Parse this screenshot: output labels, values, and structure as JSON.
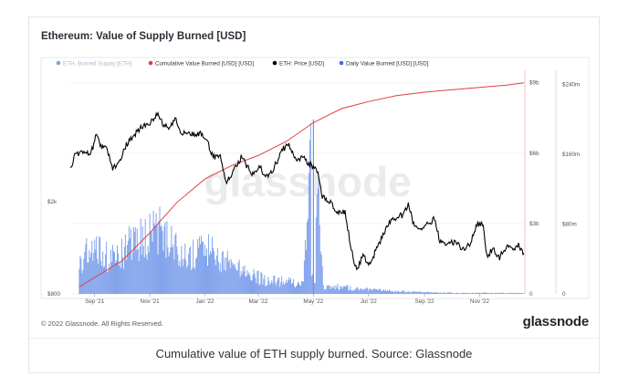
{
  "header": {
    "title": "Ethereum: Value of Supply Burned [USD]"
  },
  "footer": {
    "copyright": "© 2022 Glassnode. All Rights Reserved.",
    "logo_text": "glassnode"
  },
  "caption": "Cumulative value of ETH supply burned. Source: Glassnode",
  "watermark": "glassnode",
  "colors": {
    "eth_supply": "#7ea2de",
    "cumulative": "#e0403f",
    "price": "#000000",
    "daily": "#3c6ee8"
  },
  "chart_data": {
    "type": "line",
    "title": "Ethereum: Value of Supply Burned [USD]",
    "x_tick_labels": [
      "Sep '21",
      "Nov '21",
      "Jan '22",
      "Mar '22",
      "May '22",
      "Jul '22",
      "Sep '22",
      "Nov '22"
    ],
    "x_range": [
      "2021-08-05",
      "2022-12-20"
    ],
    "y_axis_price": {
      "ticks": [
        "$800",
        "$2k"
      ],
      "scale": "log",
      "range": [
        800,
        7000
      ]
    },
    "y_axis_cumulative": {
      "ticks": [
        "0",
        "$3b",
        "$6b",
        "$9b"
      ],
      "range": [
        0,
        9300000000
      ]
    },
    "y_axis_daily": {
      "ticks": [
        "0",
        "$80m",
        "$160m",
        "$240m"
      ],
      "range": [
        0,
        250000000
      ]
    },
    "legend": [
      "ETH: Burned Supply [ETH]",
      "Cumulative Value Burned [USD] [USD]",
      "ETH: Price [USD]",
      "Daily Value Burned [USD] [USD]"
    ],
    "series": [
      {
        "name": "ETH: Price [USD]",
        "axis": "price",
        "points": [
          [
            "2021-08-05",
            2800
          ],
          [
            "2021-08-10",
            3150
          ],
          [
            "2021-08-15",
            3250
          ],
          [
            "2021-08-22",
            3300
          ],
          [
            "2021-08-28",
            3250
          ],
          [
            "2021-09-03",
            3900
          ],
          [
            "2021-09-07",
            3450
          ],
          [
            "2021-09-14",
            3400
          ],
          [
            "2021-09-21",
            2800
          ],
          [
            "2021-09-28",
            2950
          ],
          [
            "2021-10-06",
            3550
          ],
          [
            "2021-10-15",
            3900
          ],
          [
            "2021-10-21",
            4150
          ],
          [
            "2021-10-28",
            4300
          ],
          [
            "2021-11-04",
            4500
          ],
          [
            "2021-11-10",
            4800
          ],
          [
            "2021-11-16",
            4250
          ],
          [
            "2021-11-22",
            4200
          ],
          [
            "2021-11-30",
            4600
          ],
          [
            "2021-12-04",
            4100
          ],
          [
            "2021-12-10",
            3900
          ],
          [
            "2021-12-20",
            3950
          ],
          [
            "2021-12-27",
            3950
          ],
          [
            "2022-01-03",
            3700
          ],
          [
            "2022-01-10",
            3100
          ],
          [
            "2022-01-18",
            3150
          ],
          [
            "2022-01-24",
            2400
          ],
          [
            "2022-02-01",
            2700
          ],
          [
            "2022-02-10",
            3100
          ],
          [
            "2022-02-18",
            2800
          ],
          [
            "2022-02-24",
            2600
          ],
          [
            "2022-03-02",
            2900
          ],
          [
            "2022-03-08",
            2600
          ],
          [
            "2022-03-15",
            2650
          ],
          [
            "2022-03-22",
            3000
          ],
          [
            "2022-03-29",
            3400
          ],
          [
            "2022-04-04",
            3500
          ],
          [
            "2022-04-11",
            3050
          ],
          [
            "2022-04-20",
            3100
          ],
          [
            "2022-04-27",
            2900
          ],
          [
            "2022-05-05",
            2750
          ],
          [
            "2022-05-11",
            2100
          ],
          [
            "2022-05-20",
            2000
          ],
          [
            "2022-05-28",
            1800
          ],
          [
            "2022-06-05",
            1800
          ],
          [
            "2022-06-13",
            1200
          ],
          [
            "2022-06-18",
            1000
          ],
          [
            "2022-06-25",
            1200
          ],
          [
            "2022-07-01",
            1050
          ],
          [
            "2022-07-08",
            1200
          ],
          [
            "2022-07-16",
            1400
          ],
          [
            "2022-07-23",
            1600
          ],
          [
            "2022-07-30",
            1700
          ],
          [
            "2022-08-08",
            1750
          ],
          [
            "2022-08-14",
            1950
          ],
          [
            "2022-08-20",
            1600
          ],
          [
            "2022-08-28",
            1500
          ],
          [
            "2022-09-05",
            1600
          ],
          [
            "2022-09-12",
            1700
          ],
          [
            "2022-09-18",
            1350
          ],
          [
            "2022-09-25",
            1300
          ],
          [
            "2022-10-05",
            1350
          ],
          [
            "2022-10-13",
            1250
          ],
          [
            "2022-10-21",
            1300
          ],
          [
            "2022-10-29",
            1600
          ],
          [
            "2022-11-05",
            1600
          ],
          [
            "2022-11-09",
            1150
          ],
          [
            "2022-11-15",
            1250
          ],
          [
            "2022-11-23",
            1150
          ],
          [
            "2022-11-30",
            1280
          ],
          [
            "2022-12-07",
            1250
          ],
          [
            "2022-12-14",
            1300
          ],
          [
            "2022-12-20",
            1200
          ]
        ]
      },
      {
        "name": "Cumulative Value Burned [USD] [USD]",
        "axis": "cumulative",
        "points": [
          [
            "2021-08-15",
            300000000
          ],
          [
            "2021-09-01",
            700000000
          ],
          [
            "2021-10-01",
            1400000000
          ],
          [
            "2021-11-01",
            2600000000
          ],
          [
            "2021-12-01",
            3900000000
          ],
          [
            "2022-01-01",
            4900000000
          ],
          [
            "2022-02-01",
            5500000000
          ],
          [
            "2022-03-01",
            5900000000
          ],
          [
            "2022-04-01",
            6500000000
          ],
          [
            "2022-05-01",
            7300000000
          ],
          [
            "2022-06-01",
            7900000000
          ],
          [
            "2022-07-01",
            8200000000
          ],
          [
            "2022-08-01",
            8450000000
          ],
          [
            "2022-09-01",
            8600000000
          ],
          [
            "2022-10-01",
            8700000000
          ],
          [
            "2022-11-01",
            8800000000
          ],
          [
            "2022-12-01",
            8900000000
          ],
          [
            "2022-12-20",
            9000000000
          ]
        ]
      },
      {
        "name": "Daily Value Burned [USD] [USD]",
        "axis": "daily",
        "points": [
          [
            "2021-08-15",
            35000000
          ],
          [
            "2021-09-01",
            55000000
          ],
          [
            "2021-09-15",
            45000000
          ],
          [
            "2021-10-01",
            50000000
          ],
          [
            "2021-10-20",
            60000000
          ],
          [
            "2021-11-01",
            70000000
          ],
          [
            "2021-11-10",
            75000000
          ],
          [
            "2021-11-25",
            60000000
          ],
          [
            "2021-12-10",
            45000000
          ],
          [
            "2022-01-01",
            50000000
          ],
          [
            "2022-01-20",
            40000000
          ],
          [
            "2022-02-01",
            30000000
          ],
          [
            "2022-02-20",
            22000000
          ],
          [
            "2022-03-10",
            15000000
          ],
          [
            "2022-04-01",
            14000000
          ],
          [
            "2022-04-20",
            11000000
          ],
          [
            "2022-05-01",
            200000000
          ],
          [
            "2022-05-12",
            8000000
          ],
          [
            "2022-06-01",
            8000000
          ],
          [
            "2022-07-01",
            5000000
          ],
          [
            "2022-08-01",
            3000000
          ],
          [
            "2022-09-15",
            1500000
          ],
          [
            "2022-10-15",
            1000000
          ],
          [
            "2022-11-15",
            1200000
          ],
          [
            "2022-12-20",
            1000000
          ]
        ]
      }
    ]
  }
}
